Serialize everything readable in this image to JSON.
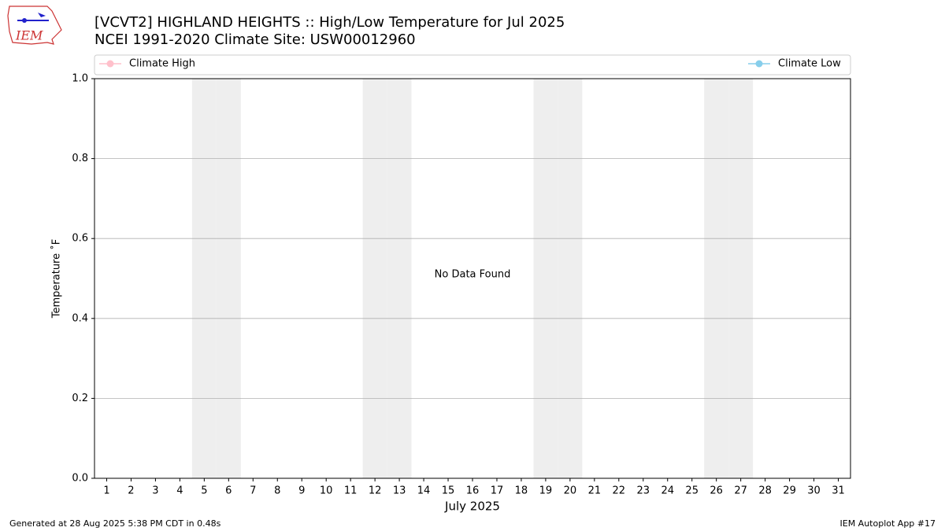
{
  "logo_text": "IEM",
  "chart_data": {
    "type": "line",
    "title": "[VCVT2] HIGHLAND HEIGHTS :: High/Low Temperature for Jul 2025",
    "subtitle": "NCEI 1991-2020 Climate Site: USW00012960",
    "x_label": "July 2025",
    "y_label": "Temperature ˚F",
    "annotation": "No Data Found",
    "x": [
      1,
      2,
      3,
      4,
      5,
      6,
      7,
      8,
      9,
      10,
      11,
      12,
      13,
      14,
      15,
      16,
      17,
      18,
      19,
      20,
      21,
      22,
      23,
      24,
      25,
      26,
      27,
      28,
      29,
      30,
      31
    ],
    "xlim": [
      0.5,
      31.5
    ],
    "xticks": [
      1,
      2,
      3,
      4,
      5,
      6,
      7,
      8,
      9,
      10,
      11,
      12,
      13,
      14,
      15,
      16,
      17,
      18,
      19,
      20,
      21,
      22,
      23,
      24,
      25,
      26,
      27,
      28,
      29,
      30,
      31
    ],
    "ylim": [
      0,
      1
    ],
    "yticks": [
      {
        "value": 0,
        "label": "0.0"
      },
      0.2,
      0.4,
      0.6,
      0.8,
      {
        "value": 1,
        "label": "1.0"
      }
    ],
    "grid": true,
    "shaded_days": [
      5,
      6,
      12,
      13,
      19,
      20,
      26,
      27
    ],
    "series": [
      {
        "name": "Climate High",
        "color": "#ffc0cb",
        "values": [
          null,
          null,
          null,
          null,
          null,
          null,
          null,
          null,
          null,
          null,
          null,
          null,
          null,
          null,
          null,
          null,
          null,
          null,
          null,
          null,
          null,
          null,
          null,
          null,
          null,
          null,
          null,
          null,
          null,
          null,
          null
        ]
      },
      {
        "name": "Climate Low",
        "color": "#87ceeb",
        "values": [
          null,
          null,
          null,
          null,
          null,
          null,
          null,
          null,
          null,
          null,
          null,
          null,
          null,
          null,
          null,
          null,
          null,
          null,
          null,
          null,
          null,
          null,
          null,
          null,
          null,
          null,
          null,
          null,
          null,
          null,
          null
        ]
      }
    ]
  },
  "footer": {
    "left": "Generated at 28 Aug 2025 5:38 PM CDT in 0.48s",
    "right": "IEM Autoplot App #17"
  }
}
